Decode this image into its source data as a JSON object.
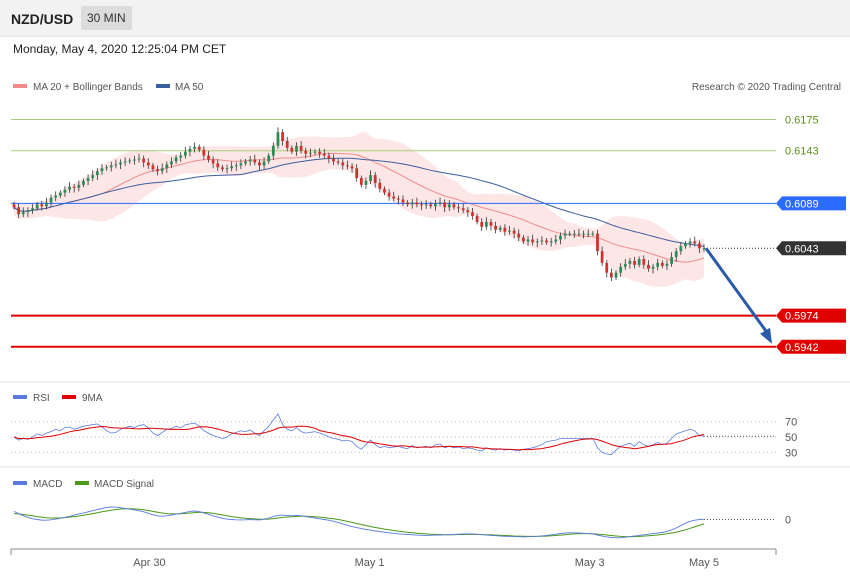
{
  "header": {
    "symbol": "NZD/USD",
    "interval": "30 MIN"
  },
  "timestamp": "Monday, May 4, 2020 12:25:04 PM CET",
  "credit": "Research © 2020 Trading Central",
  "colors": {
    "ma20": "#f28b8b",
    "ma50": "#3b5ea0",
    "bollinger_fill": "#fde0e0",
    "up_candle": "#2e8b57",
    "down_candle": "#d0312d",
    "green_line": "#a9cf7a",
    "blue_line": "#2b6bff",
    "red_line": "#e00000",
    "last_price": "#333333",
    "arrow": "#2b5ba8",
    "rsi": "#5b7be0",
    "rsi_ma": "#e00000",
    "macd": "#5b7be0",
    "macd_signal": "#4a9a1a"
  },
  "chart_data": [
    {
      "type": "line",
      "name_hint": "price",
      "legend": [
        "MA 20 + Bollinger Bands",
        "MA 50"
      ],
      "x_tick_labels": [
        "Apr 30",
        "May 1",
        "May 3",
        "May 5"
      ],
      "ylim": [
        0.591,
        0.6195
      ],
      "price_levels": [
        {
          "value": 0.6175,
          "label": "0.6175",
          "color": "#a9cf7a",
          "kind": "green"
        },
        {
          "value": 0.6143,
          "label": "0.6143",
          "color": "#a9cf7a",
          "kind": "green"
        },
        {
          "value": 0.6089,
          "label": "0.6089",
          "color": "#2b6bff",
          "kind": "blue"
        },
        {
          "value": 0.6043,
          "label": "0.6043",
          "color": "#333333",
          "kind": "last"
        },
        {
          "value": 0.5974,
          "label": "0.5974",
          "color": "#e00000",
          "kind": "red"
        },
        {
          "value": 0.5942,
          "label": "0.5942",
          "color": "#e00000",
          "kind": "red"
        }
      ],
      "close": [
        0.6085,
        0.6078,
        0.608,
        0.6082,
        0.6084,
        0.6088,
        0.6086,
        0.609,
        0.6095,
        0.6097,
        0.61,
        0.6103,
        0.6106,
        0.6105,
        0.6108,
        0.6112,
        0.6115,
        0.6118,
        0.6122,
        0.6125,
        0.6126,
        0.6128,
        0.6129,
        0.6131,
        0.6132,
        0.6133,
        0.6134,
        0.6135,
        0.6131,
        0.6128,
        0.6124,
        0.6122,
        0.6125,
        0.6129,
        0.6132,
        0.6136,
        0.6138,
        0.6142,
        0.6145,
        0.6147,
        0.6144,
        0.6138,
        0.6134,
        0.613,
        0.6126,
        0.6124,
        0.6125,
        0.6127,
        0.6128,
        0.613,
        0.6132,
        0.6134,
        0.6131,
        0.6128,
        0.6132,
        0.6138,
        0.6148,
        0.6162,
        0.6153,
        0.6146,
        0.6142,
        0.6148,
        0.6143,
        0.614,
        0.6141,
        0.6142,
        0.614,
        0.6138,
        0.6135,
        0.6132,
        0.6131,
        0.6128,
        0.6127,
        0.6125,
        0.6115,
        0.6108,
        0.6112,
        0.6118,
        0.611,
        0.6104,
        0.61,
        0.6096,
        0.6094,
        0.6093,
        0.609,
        0.6088,
        0.609,
        0.6088,
        0.6087,
        0.6088,
        0.6086,
        0.6089,
        0.609,
        0.6085,
        0.6088,
        0.6085,
        0.6084,
        0.6082,
        0.608,
        0.6076,
        0.607,
        0.6065,
        0.607,
        0.6066,
        0.6062,
        0.6064,
        0.606,
        0.6061,
        0.6058,
        0.6054,
        0.605,
        0.6052,
        0.6049,
        0.605,
        0.6051,
        0.6049,
        0.605,
        0.6052,
        0.6056,
        0.6058,
        0.6058,
        0.6058,
        0.6058,
        0.6058,
        0.6058,
        0.6058,
        0.604,
        0.6028,
        0.6018,
        0.6013,
        0.6018,
        0.6024,
        0.6027,
        0.603,
        0.6026,
        0.6032,
        0.6026,
        0.6022,
        0.6024,
        0.6028,
        0.6025,
        0.6027,
        0.6034,
        0.604,
        0.6045,
        0.6048,
        0.605,
        0.6048,
        0.6043,
        0.6043
      ]
    },
    {
      "type": "line",
      "legend": [
        "RSI",
        "9MA"
      ],
      "y_tick_labels": [
        "70",
        "50",
        "30"
      ],
      "ylim": [
        15,
        85
      ],
      "rsi": [
        50,
        46,
        48,
        47,
        50,
        54,
        52,
        55,
        57,
        60,
        58,
        62,
        63,
        60,
        62,
        64,
        65,
        66,
        67,
        63,
        58,
        55,
        56,
        60,
        62,
        64,
        62,
        65,
        66,
        62,
        55,
        52,
        56,
        60,
        61,
        64,
        62,
        66,
        67,
        68,
        64,
        58,
        55,
        52,
        50,
        48,
        50,
        54,
        56,
        58,
        57,
        59,
        55,
        52,
        58,
        64,
        72,
        80,
        66,
        60,
        58,
        62,
        57,
        55,
        56,
        57,
        55,
        53,
        50,
        48,
        47,
        45,
        46,
        44,
        38,
        34,
        40,
        46,
        40,
        36,
        38,
        36,
        37,
        38,
        36,
        35,
        39,
        36,
        37,
        38,
        36,
        40,
        41,
        36,
        38,
        36,
        37,
        35,
        36,
        35,
        33,
        32,
        36,
        34,
        33,
        35,
        33,
        34,
        33,
        32,
        34,
        35,
        36,
        38,
        40,
        44,
        45,
        46,
        48,
        48,
        48,
        48,
        48,
        48,
        48,
        48,
        36,
        30,
        28,
        27,
        33,
        38,
        40,
        42,
        38,
        44,
        40,
        38,
        40,
        43,
        40,
        42,
        48,
        54,
        56,
        58,
        60,
        58,
        52,
        51
      ]
    },
    {
      "type": "line",
      "legend": [
        "MACD",
        "MACD Signal"
      ],
      "y_tick_labels": [
        "0"
      ],
      "ylim": [
        -0.0018,
        0.0018
      ],
      "macd": [
        0.00055,
        0.0004,
        0.00025,
        0.00015,
        5e-05,
        0.0,
        -5e-05,
        -5e-05,
        -2e-05,
        3e-05,
        8e-05,
        0.00015,
        0.00022,
        0.0003,
        0.00038,
        0.00045,
        0.00052,
        0.0006,
        0.00068,
        0.00075,
        0.00082,
        0.00085,
        0.00084,
        0.0008,
        0.00075,
        0.0007,
        0.00065,
        0.0006,
        0.00052,
        0.00042,
        0.00032,
        0.00025,
        0.00022,
        0.00025,
        0.0003,
        0.00036,
        0.00042,
        0.00048,
        0.00055,
        0.00058,
        0.00054,
        0.00045,
        0.00035,
        0.00025,
        0.00015,
        8e-05,
        2e-05,
        0.0,
        -2e-05,
        -3e-05,
        -2e-05,
        0.0,
        -2e-05,
        -3e-05,
        2e-05,
        0.0001,
        0.0002,
        0.00028,
        0.0003,
        0.00028,
        0.00025,
        0.00028,
        0.00025,
        0.0002,
        0.00015,
        0.0001,
        5e-05,
        0.0,
        -5e-05,
        -0.00012,
        -0.0002,
        -0.0003,
        -0.0004,
        -0.00048,
        -0.00055,
        -0.00062,
        -0.00068,
        -0.00072,
        -0.00078,
        -0.00082,
        -0.00086,
        -0.0009,
        -0.00094,
        -0.00098,
        -0.001,
        -0.00102,
        -0.00104,
        -0.00106,
        -0.00107,
        -0.00108,
        -0.00107,
        -0.00106,
        -0.00105,
        -0.00104,
        -0.00103,
        -0.00102,
        -0.001,
        -0.00098,
        -0.00097,
        -0.00098,
        -0.001,
        -0.00103,
        -0.00106,
        -0.00108,
        -0.0011,
        -0.00112,
        -0.00114,
        -0.00115,
        -0.00116,
        -0.00117,
        -0.00118,
        -0.00117,
        -0.00116,
        -0.00114,
        -0.00112,
        -0.00108,
        -0.00104,
        -0.001,
        -0.00095,
        -0.00092,
        -0.0009,
        -0.0009,
        -0.00092,
        -0.00094,
        -0.00096,
        -0.00098,
        -0.00105,
        -0.00112,
        -0.00118,
        -0.00122,
        -0.00124,
        -0.00124,
        -0.0012,
        -0.00116,
        -0.00112,
        -0.00108,
        -0.00104,
        -0.001,
        -0.00096,
        -0.00092,
        -0.00088,
        -0.0008,
        -0.0007,
        -0.00058,
        -0.00042,
        -0.00025,
        -0.00012,
        -5e-05,
        0.0,
        2e-05
      ],
      "signal": [
        0.0004,
        0.00038,
        0.00034,
        0.0003,
        0.00025,
        0.0002,
        0.00016,
        0.00012,
        0.0001,
        0.0001,
        0.00011,
        0.00013,
        0.00016,
        0.0002,
        0.00024,
        0.00029,
        0.00034,
        0.0004,
        0.00046,
        0.00052,
        0.00058,
        0.00063,
        0.00068,
        0.00071,
        0.00073,
        0.00073,
        0.00072,
        0.0007,
        0.00066,
        0.00061,
        0.00055,
        0.00049,
        0.00044,
        0.0004,
        0.00038,
        0.00038,
        0.00039,
        0.00041,
        0.00044,
        0.00047,
        0.00049,
        0.00048,
        0.00046,
        0.00042,
        0.00037,
        0.00031,
        0.00025,
        0.0002,
        0.00015,
        0.00011,
        8e-05,
        6e-05,
        4e-05,
        2e-05,
        2e-05,
        3e-05,
        6e-05,
        0.0001,
        0.00014,
        0.00017,
        0.00019,
        0.00021,
        0.00022,
        0.00022,
        0.00021,
        0.00019,
        0.00016,
        0.00013,
        9e-05,
        5e-05,
        0.0,
        -6e-05,
        -0.00013,
        -0.0002,
        -0.00027,
        -0.00034,
        -0.00041,
        -0.00048,
        -0.00054,
        -0.0006,
        -0.00065,
        -0.0007,
        -0.00075,
        -0.00079,
        -0.00083,
        -0.00087,
        -0.0009,
        -0.00093,
        -0.00096,
        -0.00098,
        -0.001,
        -0.00101,
        -0.00102,
        -0.00103,
        -0.00103,
        -0.00103,
        -0.00102,
        -0.00102,
        -0.00101,
        -0.00101,
        -0.00101,
        -0.00102,
        -0.00103,
        -0.00104,
        -0.00106,
        -0.00107,
        -0.00109,
        -0.0011,
        -0.00112,
        -0.00113,
        -0.00114,
        -0.00115,
        -0.00115,
        -0.00115,
        -0.00114,
        -0.00113,
        -0.00111,
        -0.00109,
        -0.00106,
        -0.00103,
        -0.001,
        -0.00098,
        -0.00097,
        -0.00096,
        -0.00096,
        -0.00097,
        -0.00099,
        -0.00102,
        -0.00105,
        -0.00109,
        -0.00112,
        -0.00115,
        -0.00116,
        -0.00117,
        -0.00116,
        -0.00115,
        -0.00113,
        -0.00111,
        -0.00108,
        -0.00105,
        -0.00101,
        -0.00097,
        -0.00092,
        -0.00086,
        -0.00078,
        -0.0007,
        -0.0006,
        -0.0005,
        -0.0004,
        -0.0003
      ]
    }
  ]
}
